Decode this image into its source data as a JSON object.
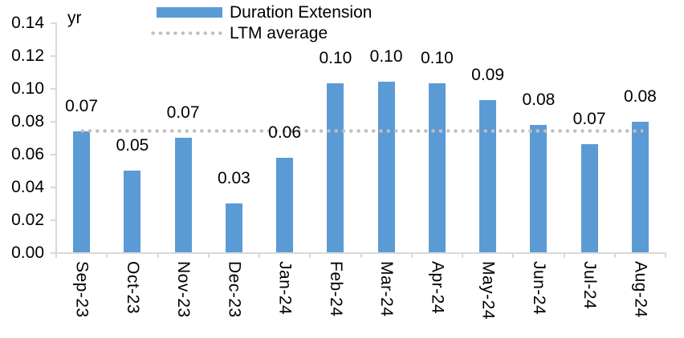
{
  "chart_data": {
    "type": "bar",
    "unit_label": "yr",
    "categories": [
      "Sep-23",
      "Oct-23",
      "Nov-23",
      "Dec-23",
      "Jan-24",
      "Feb-24",
      "Mar-24",
      "Apr-24",
      "May-24",
      "Jun-24",
      "Jul-24",
      "Aug-24"
    ],
    "series": [
      {
        "name": "Duration Extension",
        "type": "bar",
        "color": "#5B9BD5",
        "values": [
          0.074,
          0.05,
          0.07,
          0.03,
          0.058,
          0.103,
          0.104,
          0.103,
          0.093,
          0.078,
          0.066,
          0.08
        ],
        "data_labels": [
          "0.07",
          "0.05",
          "0.07",
          "0.03",
          "0.06",
          "0.10",
          "0.10",
          "0.10",
          "0.09",
          "0.08",
          "0.07",
          "0.08"
        ]
      },
      {
        "name": "LTM average",
        "type": "line",
        "line_style": "dotted",
        "color": "#BFBFBF",
        "value": 0.074
      }
    ],
    "xlabel": "",
    "ylabel": "yr",
    "ylim": [
      0,
      0.14
    ],
    "y_tick_step": 0.02,
    "y_tick_labels": [
      "0.00",
      "0.02",
      "0.04",
      "0.06",
      "0.08",
      "0.10",
      "0.12",
      "0.14"
    ],
    "grid": false,
    "legend_position": "top",
    "axis_color": "#D9D9D9",
    "text_color": "#000000"
  }
}
